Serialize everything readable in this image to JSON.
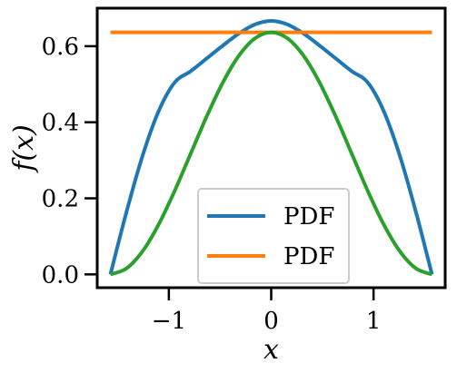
{
  "chart_data": {
    "type": "line",
    "xlabel": "x",
    "ylabel": "f(x)",
    "xlim": [
      -1.7,
      1.7
    ],
    "ylim": [
      -0.035,
      0.7
    ],
    "xticks": [
      -1,
      0,
      1
    ],
    "xtick_labels": [
      "−1",
      "0",
      "1"
    ],
    "yticks": [
      0.0,
      0.2,
      0.4,
      0.6
    ],
    "ytick_labels": [
      "0.0",
      "0.2",
      "0.4",
      "0.6"
    ],
    "grid": false,
    "legend_position": "lower-center",
    "series": [
      {
        "name": "PDF",
        "color": "#1f77b4",
        "x": [
          -1.5708,
          -1.4137,
          -1.2566,
          -1.0996,
          -0.9425,
          -0.7854,
          -0.6283,
          -0.4712,
          -0.3142,
          -0.1571,
          0.0,
          0.1571,
          0.3142,
          0.4712,
          0.6283,
          0.7854,
          0.9425,
          1.0996,
          1.2566,
          1.4137,
          1.5708
        ],
        "y": [
          0.0,
          0.1644,
          0.3121,
          0.4292,
          0.5048,
          0.5345,
          0.5683,
          0.6019,
          0.6336,
          0.6574,
          0.6667,
          0.6574,
          0.6336,
          0.6019,
          0.5683,
          0.5345,
          0.5048,
          0.4292,
          0.3121,
          0.1644,
          0.0
        ]
      },
      {
        "name": "PDF",
        "color": "#ff7f0e",
        "x": [
          -1.5708,
          1.5708
        ],
        "y": [
          0.6366,
          0.6366
        ]
      },
      {
        "name": "",
        "color": "#2ca02c",
        "x": [
          -1.5708,
          -1.4137,
          -1.2566,
          -1.0996,
          -0.9425,
          -0.7854,
          -0.6283,
          -0.4712,
          -0.3142,
          -0.1571,
          0.0,
          0.1571,
          0.3142,
          0.4712,
          0.6283,
          0.7854,
          0.9425,
          1.0996,
          1.2566,
          1.4137,
          1.5708
        ],
        "y": [
          0.0,
          0.0156,
          0.0608,
          0.1313,
          0.22,
          0.3183,
          0.4165,
          0.5052,
          0.5757,
          0.621,
          0.6366,
          0.621,
          0.5757,
          0.5052,
          0.4165,
          0.3183,
          0.22,
          0.1313,
          0.0608,
          0.0156,
          0.0
        ]
      }
    ]
  }
}
